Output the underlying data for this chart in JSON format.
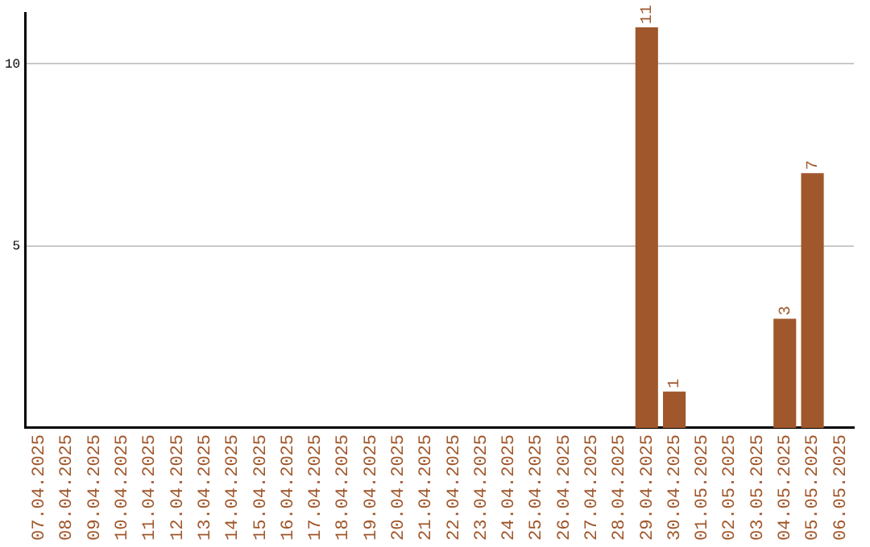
{
  "chart_data": {
    "type": "bar",
    "categories": [
      "07.04.2025",
      "08.04.2025",
      "09.04.2025",
      "10.04.2025",
      "11.04.2025",
      "12.04.2025",
      "13.04.2025",
      "14.04.2025",
      "15.04.2025",
      "16.04.2025",
      "17.04.2025",
      "18.04.2025",
      "19.04.2025",
      "20.04.2025",
      "21.04.2025",
      "22.04.2025",
      "23.04.2025",
      "24.04.2025",
      "25.04.2025",
      "26.04.2025",
      "27.04.2025",
      "28.04.2025",
      "29.04.2025",
      "30.04.2025",
      "01.05.2025",
      "02.05.2025",
      "03.05.2025",
      "04.05.2025",
      "05.05.2025",
      "06.05.2025"
    ],
    "values": [
      0,
      0,
      0,
      0,
      0,
      0,
      0,
      0,
      0,
      0,
      0,
      0,
      0,
      0,
      0,
      0,
      0,
      0,
      0,
      0,
      0,
      0,
      11,
      1,
      0,
      0,
      0,
      3,
      7,
      0
    ],
    "value_labels": [
      null,
      null,
      null,
      null,
      null,
      null,
      null,
      null,
      null,
      null,
      null,
      null,
      null,
      null,
      null,
      null,
      null,
      null,
      null,
      null,
      null,
      null,
      "11",
      "1",
      null,
      null,
      null,
      "3",
      "7",
      null
    ],
    "color": "#a0572b",
    "ylim": [
      0,
      11.4
    ],
    "yticks": [
      5,
      10
    ],
    "grid": "y",
    "legend": false
  }
}
